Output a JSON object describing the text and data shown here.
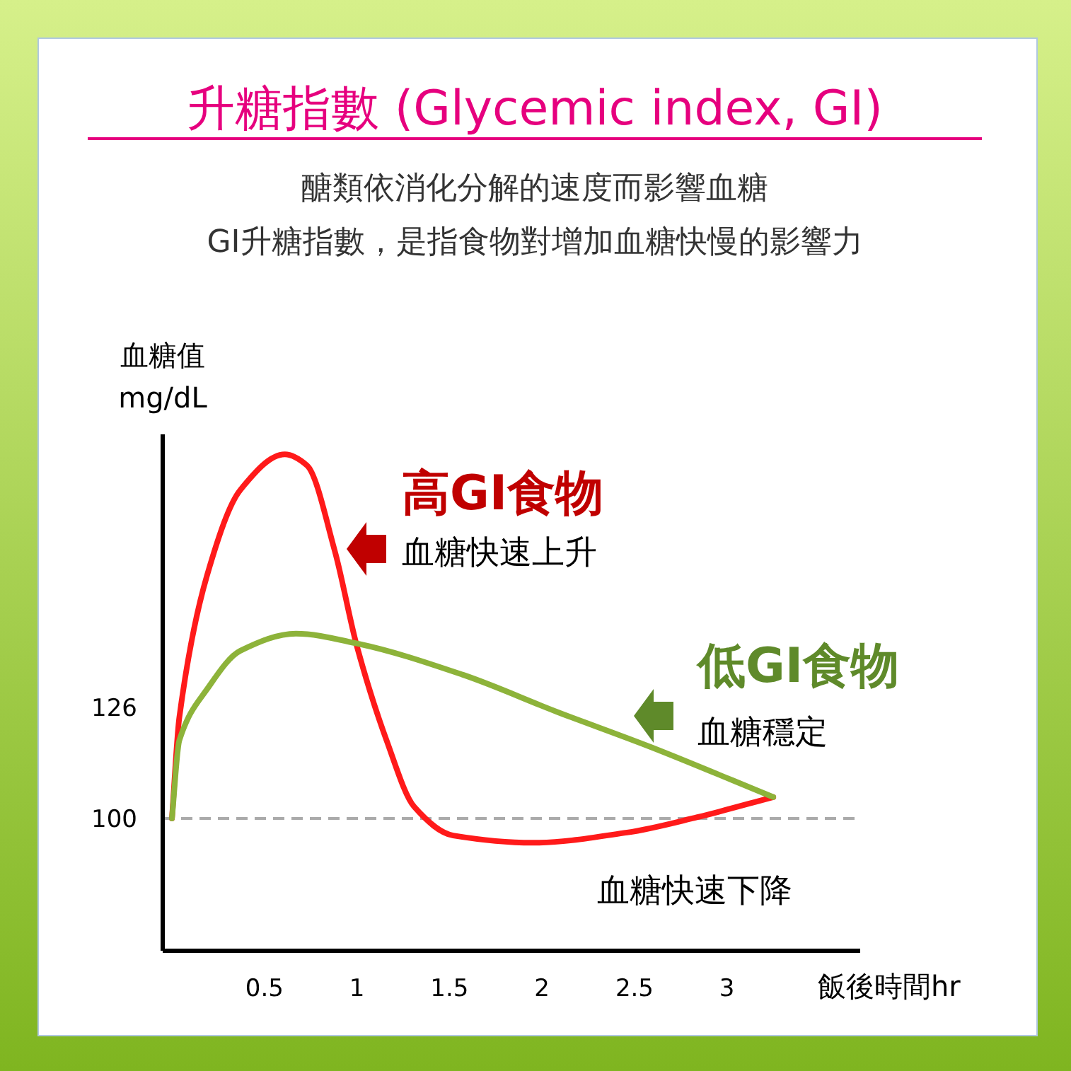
{
  "chart_data": {
    "type": "line",
    "title": "升糖指數 (Glycemic index, GI)",
    "subtitle": "醣類依消化分解的速度而影響血糖\nGI升糖指數，是指食物對增加血糖快慢的影響力",
    "xlabel": "飯後時間hr",
    "ylabel": "血糖值\nmg/dL",
    "xlim": [
      -0.05,
      3.72
    ],
    "ylim": [
      69,
      190
    ],
    "xticks": [
      0.5,
      1,
      1.5,
      2,
      2.5,
      3
    ],
    "yticks": [
      100,
      126
    ],
    "grid": false,
    "marker": "none",
    "line_style": "solid",
    "series": [
      {
        "name": "高GI食物",
        "color": "#ff1a1a",
        "x": [
          0,
          0.04,
          0.19,
          0.37,
          0.61,
          0.73,
          0.88,
          1.0,
          1.16,
          1.31,
          1.52,
          1.95,
          2.46,
          2.84,
          3.25
        ],
        "values": [
          100,
          123.7,
          157,
          177,
          185.3,
          182.7,
          162.7,
          140.3,
          118.3,
          102.7,
          96,
          94.3,
          96.7,
          100.3,
          105
        ]
      },
      {
        "name": "低GI食物",
        "color": "#8db33a",
        "x": [
          0,
          0.04,
          0.19,
          0.37,
          0.67,
          1.0,
          1.57,
          2.08,
          2.59,
          3.25
        ],
        "values": [
          100,
          118.3,
          130.3,
          139.3,
          143.3,
          141,
          133.7,
          125,
          116.7,
          105
        ]
      }
    ],
    "ref_lines": [
      {
        "axis": "y",
        "value": 100,
        "color": "#aaaaaa",
        "line_style": "dashed"
      }
    ],
    "annotations": [
      "血糖快速上升",
      "血糖穩定",
      "血糖快速下降"
    ]
  }
}
